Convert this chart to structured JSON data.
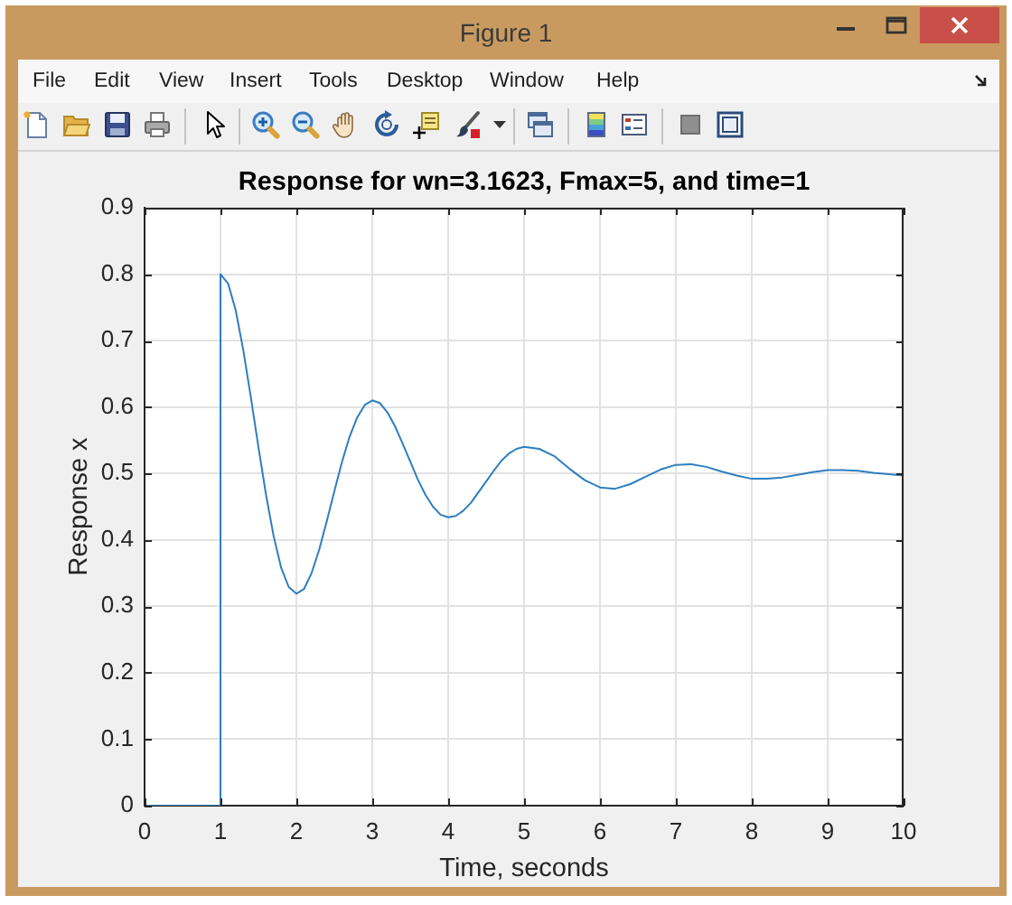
{
  "chart_data": {
    "type": "line",
    "title": "Response for wn=3.1623, Fmax=5, and time=1",
    "xlabel": "Time, seconds",
    "ylabel": "Response x",
    "annotations": [
      "Figure 1",
      "File",
      "Edit",
      "View",
      "Insert",
      "Tools",
      "Desktop",
      "Window",
      "Help"
    ],
    "x": [
      0,
      1,
      1,
      1.1,
      1.2,
      1.3,
      1.4,
      1.5,
      1.6,
      1.7,
      1.8,
      1.9,
      2.0,
      2.1,
      2.2,
      2.3,
      2.4,
      2.5,
      2.6,
      2.7,
      2.8,
      2.9,
      3.0,
      3.1,
      3.2,
      3.3,
      3.4,
      3.5,
      3.6,
      3.7,
      3.8,
      3.9,
      4.0,
      4.1,
      4.2,
      4.3,
      4.4,
      4.5,
      4.6,
      4.7,
      4.8,
      4.9,
      5.0,
      5.2,
      5.4,
      5.6,
      5.8,
      6.0,
      6.2,
      6.4,
      6.6,
      6.8,
      7.0,
      7.2,
      7.4,
      7.6,
      7.8,
      8.0,
      8.2,
      8.4,
      8.6,
      8.8,
      9.0,
      9.2,
      9.4,
      9.6,
      9.8,
      10.0
    ],
    "values": [
      0,
      0,
      0.8,
      0.786,
      0.746,
      0.686,
      0.615,
      0.54,
      0.468,
      0.406,
      0.358,
      0.329,
      0.319,
      0.326,
      0.35,
      0.385,
      0.428,
      0.473,
      0.517,
      0.555,
      0.584,
      0.603,
      0.61,
      0.606,
      0.592,
      0.571,
      0.545,
      0.518,
      0.491,
      0.468,
      0.45,
      0.438,
      0.434,
      0.436,
      0.444,
      0.456,
      0.472,
      0.488,
      0.504,
      0.519,
      0.53,
      0.537,
      0.54,
      0.537,
      0.526,
      0.507,
      0.49,
      0.479,
      0.477,
      0.484,
      0.495,
      0.506,
      0.513,
      0.514,
      0.51,
      0.503,
      0.497,
      0.492,
      0.492,
      0.494,
      0.498,
      0.502,
      0.505,
      0.505,
      0.504,
      0.501,
      0.499,
      0.497
    ],
    "color": "#2e7ebf",
    "xlim": [
      0,
      10
    ],
    "ylim": [
      0,
      0.9
    ],
    "xticks": [
      0,
      1,
      2,
      3,
      4,
      5,
      6,
      7,
      8,
      9,
      10
    ],
    "yticks": [
      0,
      0.1,
      0.2,
      0.3,
      0.4,
      0.5,
      0.6,
      0.7,
      0.8,
      0.9
    ],
    "grid": true
  }
}
